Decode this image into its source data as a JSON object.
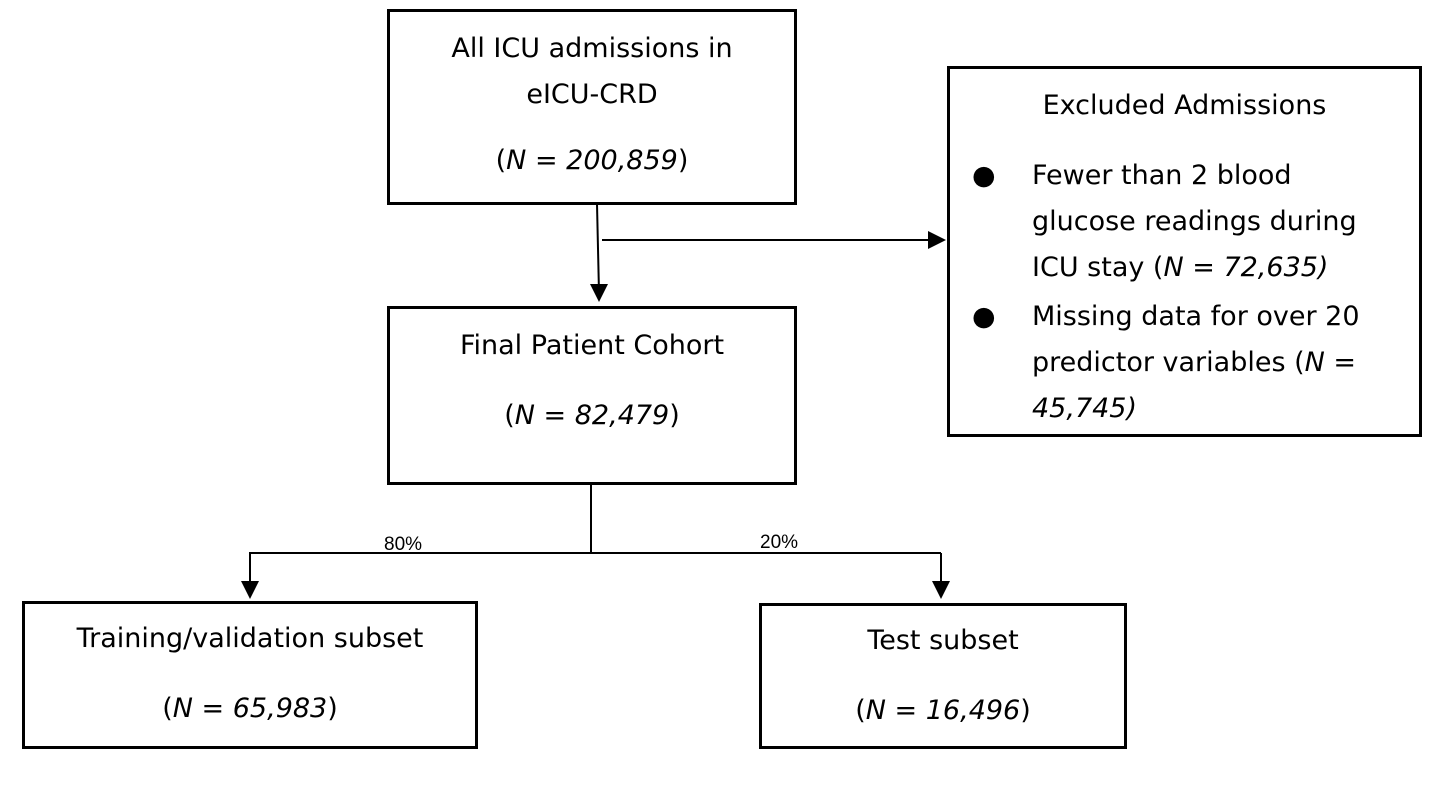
{
  "boxes": {
    "all_admissions": {
      "line1": "All ICU admissions in",
      "line2": "eICU-CRD",
      "count_prefix": "(",
      "count": "N = 200,859",
      "count_suffix": ")"
    },
    "excluded": {
      "title": "Excluded Admissions",
      "items": [
        {
          "lines": [
            "Fewer than 2 blood",
            "glucose readings during"
          ],
          "last_plain": "ICU stay (",
          "last_italic": "N = 72,635)"
        },
        {
          "lines": [
            "Missing data for over 20"
          ],
          "last_plain": "predictor variables (",
          "last_italic": "N =",
          "extra_italic": "45,745)"
        }
      ]
    },
    "final_cohort": {
      "line1": "Final Patient Cohort",
      "count_prefix": "(",
      "count": "N = 82,479",
      "count_suffix": ")"
    },
    "training": {
      "line1": "Training/validation subset",
      "count_prefix": "(",
      "count": "N = 65,983",
      "count_suffix": ")"
    },
    "test": {
      "line1": "Test subset",
      "count_prefix": "(",
      "count": "N = 16,496",
      "count_suffix": ")"
    }
  },
  "split_labels": {
    "training_pct": "80%",
    "test_pct": "20%"
  },
  "colors": {
    "stroke": "#000000",
    "background": "#ffffff"
  }
}
